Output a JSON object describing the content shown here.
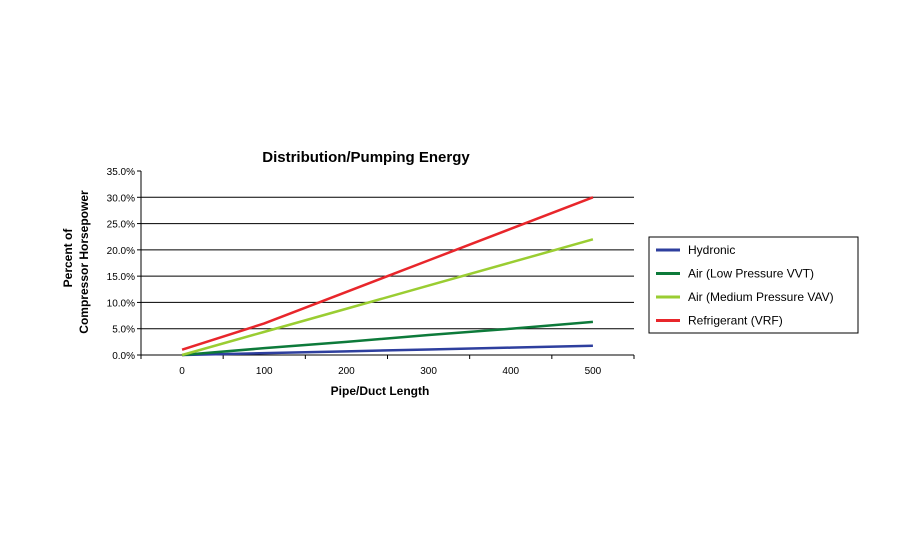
{
  "chart_data": {
    "type": "line",
    "title": "Distribution/Pumping Energy",
    "xlabel": "Pipe/Duct Length",
    "ylabel": [
      "Percent of",
      "Compressor Horsepower"
    ],
    "categories": [
      "0",
      "100",
      "200",
      "300",
      "400",
      "500"
    ],
    "x": [
      0,
      100,
      200,
      300,
      400,
      500
    ],
    "ylim": [
      0,
      35
    ],
    "yticks": [
      "0.0%",
      "5.0%",
      "10.0%",
      "15.0%",
      "20.0%",
      "25.0%",
      "30.0%",
      "35.0%"
    ],
    "grid": true,
    "legend": "right",
    "series": [
      {
        "name": "Hydronic",
        "color": "#2e3f9e",
        "values": [
          0,
          0.35,
          0.7,
          1.05,
          1.4,
          1.75
        ]
      },
      {
        "name": "Air (Low Pressure VVT)",
        "color": "#0d7a3a",
        "values": [
          0,
          1.3,
          2.5,
          3.8,
          5.0,
          6.3
        ]
      },
      {
        "name": "Air (Medium Pressure VAV)",
        "color": "#9acd32",
        "values": [
          0,
          4.4,
          8.8,
          13.2,
          17.6,
          22.0
        ]
      },
      {
        "name": "Refrigerant (VRF)",
        "color": "#e8262b",
        "values": [
          1.0,
          6.0,
          12.0,
          18.0,
          24.0,
          30.0
        ]
      }
    ]
  }
}
